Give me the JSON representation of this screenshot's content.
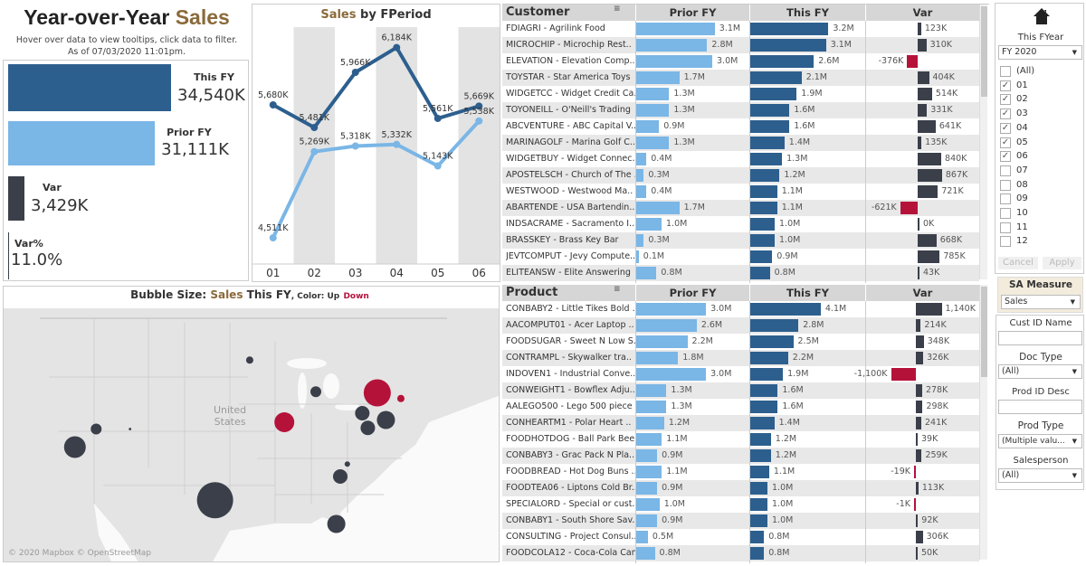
{
  "kpi": {
    "title_part1": "Year-over-Year",
    "title_part2": "Sales",
    "subtitle_line1": "Hover over data to view tooltips, click data to filter.",
    "subtitle_line2": "As of  07/03/2020 11:01pm.",
    "this_fy_label": "This FY",
    "this_fy_value": "34,540K",
    "this_fy_num": 34540,
    "prior_fy_label": "Prior FY",
    "prior_fy_value": "31,111K",
    "prior_fy_num": 31111,
    "var_label": "Var",
    "var_value": "3,429K",
    "var_num": 3429,
    "var_pct_label": "Var%",
    "var_pct_value": "11.0%"
  },
  "colors": {
    "this_fy": "#2d5f8e",
    "prior_fy": "#7ab6e6",
    "var_up": "#3a3f4a",
    "var_down": "#b5123a",
    "accent": "#8a6a3a"
  },
  "chart_data": {
    "type": "line",
    "title_part1": "Sales",
    "title_part2": "by FPeriod",
    "categories": [
      "01",
      "02",
      "03",
      "04",
      "05",
      "06"
    ],
    "series": [
      {
        "values": [
          5680,
          5481,
          5966,
          6184,
          5561,
          5669
        ],
        "labels": [
          "5,680K",
          "5,481K",
          "5,966K",
          "6,184K",
          "5,561K",
          "5,669K"
        ],
        "color": "#2d5f8e"
      },
      {
        "values": [
          4511,
          5269,
          5318,
          5332,
          5143,
          5538
        ],
        "labels": [
          "4,511K",
          "5,269K",
          "5,318K",
          "5,332K",
          "5,143K",
          "5,538K"
        ],
        "color": "#7ab6e6"
      }
    ],
    "ylim": [
      4400,
      6300
    ],
    "grid": false
  },
  "customer_table": {
    "header": {
      "name": "Customer",
      "prior": "Prior FY",
      "this": "This FY",
      "var": "Var"
    },
    "rows": [
      [
        "FDIAGRI",
        "Agrilink Food",
        "3.1M",
        "3.2M",
        "123K"
      ],
      [
        "MICROCHIP",
        "Microchip Rest..",
        "2.8M",
        "3.1M",
        "310K"
      ],
      [
        "ELEVATION",
        "Elevation Comp..",
        "3.0M",
        "2.6M",
        "-376K"
      ],
      [
        "TOYSTAR",
        "Star America Toys",
        "1.7M",
        "2.1M",
        "404K"
      ],
      [
        "WIDGETCC",
        "Widget Credit Ca..",
        "1.3M",
        "1.9M",
        "514K"
      ],
      [
        "TOYONEILL",
        "O'Neill's Trading",
        "1.3M",
        "1.6M",
        "331K"
      ],
      [
        "ABCVENTURE",
        "ABC Capital V..",
        "0.9M",
        "1.6M",
        "641K"
      ],
      [
        "MARINAGOLF",
        "Marina Golf C..",
        "1.3M",
        "1.4M",
        "135K"
      ],
      [
        "WIDGETBUY",
        "Widget Connec..",
        "0.4M",
        "1.3M",
        "840K"
      ],
      [
        "APOSTELSCH",
        "Church of The ..",
        "0.3M",
        "1.2M",
        "867K"
      ],
      [
        "WESTWOOD",
        "Westwood Ma..",
        "0.4M",
        "1.1M",
        "721K"
      ],
      [
        "ABARTENDE",
        "USA Bartendin..",
        "1.7M",
        "1.1M",
        "-621K"
      ],
      [
        "INDSACRAME",
        "Sacramento I..",
        "1.0M",
        "1.0M",
        "0K"
      ],
      [
        "BRASSKEY",
        "Brass Key Bar",
        "0.3M",
        "1.0M",
        "668K"
      ],
      [
        "JEVTCOMPUT",
        "Jevy Compute..",
        "0.1M",
        "0.9M",
        "785K"
      ],
      [
        "ELITEANSW",
        "Elite Answering",
        "0.8M",
        "0.8M",
        "43K"
      ]
    ]
  },
  "product_table": {
    "header": {
      "name": "Product",
      "prior": "Prior FY",
      "this": "This FY",
      "var": "Var"
    },
    "rows": [
      [
        "CONBABY2",
        "Little Tikes Bold ..",
        "3.0M",
        "4.1M",
        "1,140K"
      ],
      [
        "AACOMPUT01",
        "Acer Laptop ..",
        "2.6M",
        "2.8M",
        "214K"
      ],
      [
        "FOODSUGAR",
        "Sweet N Low S..",
        "2.2M",
        "2.5M",
        "348K"
      ],
      [
        "CONTRAMPL",
        "Skywalker tra..",
        "1.8M",
        "2.2M",
        "326K"
      ],
      [
        "INDOVEN1",
        "Industrial Conve..",
        "3.0M",
        "1.9M",
        "-1,100K"
      ],
      [
        "CONWEIGHT1",
        "Bowflex Adju..",
        "1.3M",
        "1.6M",
        "278K"
      ],
      [
        "AALEGO500",
        "Lego 500 piece ..",
        "1.3M",
        "1.6M",
        "298K"
      ],
      [
        "CONHEARTM1",
        "Polar Heart ..",
        "1.2M",
        "1.4M",
        "241K"
      ],
      [
        "FOODHOTDOG",
        "Ball Park Bee..",
        "1.1M",
        "1.2M",
        "39K"
      ],
      [
        "CONBABY3",
        "Grac Pack N Pla..",
        "0.9M",
        "1.2M",
        "259K"
      ],
      [
        "FOODBREAD",
        "Hot Dog Buns ..",
        "1.1M",
        "1.1M",
        "-19K"
      ],
      [
        "FOODTEA06",
        "Liptons Cold Br..",
        "0.9M",
        "1.0M",
        "113K"
      ],
      [
        "SPECIALORD",
        "Special or cust..",
        "1.0M",
        "1.0M",
        "-1K"
      ],
      [
        "CONBABY1",
        "South Shore Sav..",
        "0.9M",
        "1.0M",
        "92K"
      ],
      [
        "CONSULTING",
        "Project Consul..",
        "0.5M",
        "0.8M",
        "306K"
      ],
      [
        "FOODCOLA12",
        "Coca-Cola Can..",
        "0.8M",
        "0.8M",
        "50K"
      ]
    ]
  },
  "filters": {
    "home_icon": "home-icon",
    "fyear_label": "This FYear",
    "fyear_value": "FY 2020",
    "periods": [
      {
        "label": "(All)",
        "checked": false
      },
      {
        "label": "01",
        "checked": true
      },
      {
        "label": "02",
        "checked": true
      },
      {
        "label": "03",
        "checked": true
      },
      {
        "label": "04",
        "checked": true
      },
      {
        "label": "05",
        "checked": true
      },
      {
        "label": "06",
        "checked": true
      },
      {
        "label": "07",
        "checked": false
      },
      {
        "label": "08",
        "checked": false
      },
      {
        "label": "09",
        "checked": false
      },
      {
        "label": "10",
        "checked": false
      },
      {
        "label": "11",
        "checked": false
      },
      {
        "label": "12",
        "checked": false
      }
    ],
    "cancel_label": "Cancel",
    "apply_label": "Apply",
    "sa_measure_label": "SA Measure",
    "sa_measure_value": "Sales",
    "cust_id_label": "Cust ID Name",
    "cust_id_value": "",
    "doc_type_label": "Doc Type",
    "doc_type_value": "(All)",
    "prod_id_label": "Prod ID Desc",
    "prod_id_value": "",
    "prod_type_label": "Prod Type",
    "prod_type_value": "(Multiple valu...",
    "salesperson_label": "Salesperson",
    "salesperson_value": "(All)"
  },
  "map": {
    "title_part1": "Bubble Size:",
    "title_part2": "Sales",
    "title_part3": "This FY",
    "title_part4": ", Color: Up",
    "title_part5": "Down",
    "country_label_1": "United",
    "country_label_2": "States",
    "attribution": "© 2020 Mapbox  © OpenStreetMap",
    "bubbles": [
      {
        "lon": -114.6,
        "lat": 37.3,
        "size": 144,
        "status": "up"
      },
      {
        "lon": -111.9,
        "lat": 38.9,
        "size": 36,
        "status": "up"
      },
      {
        "lon": -107.6,
        "lat": 38.9,
        "size": 2,
        "status": "up"
      },
      {
        "lon": -96.8,
        "lat": 32.6,
        "size": 400,
        "status": "up"
      },
      {
        "lon": -92.4,
        "lat": 45.0,
        "size": 16,
        "status": "up"
      },
      {
        "lon": -84.0,
        "lat": 42.2,
        "size": 36,
        "status": "up"
      },
      {
        "lon": -88.0,
        "lat": 39.5,
        "size": 121,
        "status": "down"
      },
      {
        "lon": -76.2,
        "lat": 42.1,
        "size": 225,
        "status": "down"
      },
      {
        "lon": -73.2,
        "lat": 41.6,
        "size": 16,
        "status": "down"
      },
      {
        "lon": -78.1,
        "lat": 40.3,
        "size": 64,
        "status": "up"
      },
      {
        "lon": -77.4,
        "lat": 39.0,
        "size": 64,
        "status": "up"
      },
      {
        "lon": -75.1,
        "lat": 39.7,
        "size": 100,
        "status": "up"
      },
      {
        "lon": -80.0,
        "lat": 35.8,
        "size": 9,
        "status": "up"
      },
      {
        "lon": -80.9,
        "lat": 34.7,
        "size": 64,
        "status": "up"
      },
      {
        "lon": -81.4,
        "lat": 30.5,
        "size": 100,
        "status": "up"
      }
    ]
  }
}
